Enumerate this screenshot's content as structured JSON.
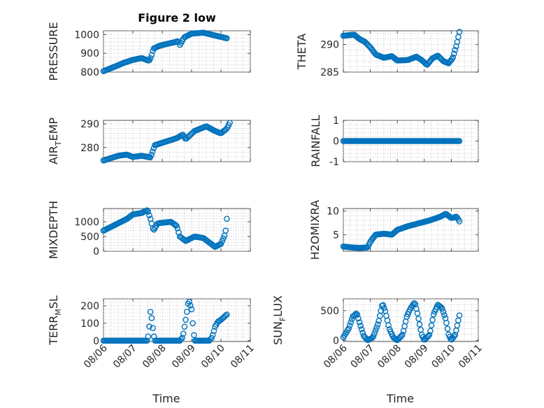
{
  "figure": {
    "title": "Figure 2 low"
  },
  "colors": {
    "marker": "#0072bd"
  },
  "chart_data": [
    {
      "type": "scatter",
      "name": "pressure",
      "ylabel": "PRESSURE",
      "xlabel": "",
      "xlim": [
        0,
        5
      ],
      "ylim": [
        800,
        1020
      ],
      "yticks": [
        800,
        900,
        1000
      ],
      "ytick_labels": [
        "800",
        "900",
        "1000"
      ],
      "xticks": [
        0,
        1,
        2,
        3,
        4,
        5
      ],
      "xtick_labels": [],
      "grid": true,
      "keypoints": [
        [
          0,
          805
        ],
        [
          0.4,
          830
        ],
        [
          0.7,
          850
        ],
        [
          1.0,
          865
        ],
        [
          1.3,
          875
        ],
        [
          1.55,
          860
        ],
        [
          1.62,
          880
        ],
        [
          1.7,
          925
        ],
        [
          1.9,
          940
        ],
        [
          2.3,
          955
        ],
        [
          2.55,
          965
        ],
        [
          2.6,
          945
        ],
        [
          2.75,
          985
        ],
        [
          3.0,
          1005
        ],
        [
          3.4,
          1010
        ],
        [
          3.8,
          995
        ],
        [
          4.2,
          980
        ]
      ]
    },
    {
      "type": "scatter",
      "name": "theta",
      "ylabel": "THETA",
      "xlabel": "",
      "xlim": [
        0,
        5
      ],
      "ylim": [
        285,
        292.5
      ],
      "yticks": [
        285,
        290
      ],
      "ytick_labels": [
        "285",
        "290"
      ],
      "xticks": [
        0,
        1,
        2,
        3,
        4,
        5
      ],
      "xtick_labels": [],
      "grid": true,
      "keypoints": [
        [
          0,
          291.6
        ],
        [
          0.4,
          291.8
        ],
        [
          0.6,
          291.0
        ],
        [
          0.8,
          290.5
        ],
        [
          1.0,
          289.5
        ],
        [
          1.2,
          288.2
        ],
        [
          1.5,
          287.6
        ],
        [
          1.8,
          287.9
        ],
        [
          2.0,
          287.1
        ],
        [
          2.4,
          287.2
        ],
        [
          2.7,
          287.8
        ],
        [
          2.9,
          287.2
        ],
        [
          3.1,
          286.3
        ],
        [
          3.3,
          287.5
        ],
        [
          3.5,
          288.0
        ],
        [
          3.7,
          287.0
        ],
        [
          3.9,
          286.6
        ],
        [
          4.05,
          287.5
        ],
        [
          4.2,
          290.0
        ],
        [
          4.3,
          292.3
        ]
      ]
    },
    {
      "type": "scatter",
      "name": "air_temp",
      "ylabel": "AIR_TEMP",
      "xlabel": "",
      "xlim": [
        0,
        5
      ],
      "ylim": [
        274,
        291.5
      ],
      "yticks": [
        280,
        290
      ],
      "ytick_labels": [
        "280",
        "290"
      ],
      "xticks": [
        0,
        1,
        2,
        3,
        4,
        5
      ],
      "xtick_labels": [],
      "grid": true,
      "keypoints": [
        [
          0,
          274.5
        ],
        [
          0.5,
          276.5
        ],
        [
          0.8,
          277.0
        ],
        [
          1.0,
          276.0
        ],
        [
          1.3,
          276.5
        ],
        [
          1.6,
          275.8
        ],
        [
          1.75,
          281.0
        ],
        [
          2.0,
          282.0
        ],
        [
          2.5,
          284.0
        ],
        [
          2.7,
          285.5
        ],
        [
          2.8,
          283.5
        ],
        [
          3.1,
          287.0
        ],
        [
          3.5,
          289.0
        ],
        [
          3.8,
          287.0
        ],
        [
          4.0,
          286.0
        ],
        [
          4.2,
          288.0
        ],
        [
          4.3,
          290.5
        ]
      ]
    },
    {
      "type": "scatter",
      "name": "rainfall",
      "ylabel": "RAINFALL",
      "xlabel": "",
      "xlim": [
        0,
        5
      ],
      "ylim": [
        -1,
        1
      ],
      "yticks": [
        -1,
        0,
        1
      ],
      "ytick_labels": [
        "-1",
        "0",
        "1"
      ],
      "xticks": [
        0,
        1,
        2,
        3,
        4,
        5
      ],
      "xtick_labels": [],
      "grid": true,
      "keypoints": [
        [
          0,
          0
        ],
        [
          4.3,
          0
        ]
      ]
    },
    {
      "type": "scatter",
      "name": "mixdepth",
      "ylabel": "MIXDEPTH",
      "xlabel": "",
      "xlim": [
        0,
        5
      ],
      "ylim": [
        0,
        1450
      ],
      "yticks": [
        0,
        500,
        1000
      ],
      "ytick_labels": [
        "0",
        "500",
        "1000"
      ],
      "xticks": [
        0,
        1,
        2,
        3,
        4,
        5
      ],
      "xtick_labels": [],
      "grid": true,
      "keypoints": [
        [
          0,
          700
        ],
        [
          0.5,
          950
        ],
        [
          0.8,
          1100
        ],
        [
          1.0,
          1250
        ],
        [
          1.3,
          1300
        ],
        [
          1.5,
          1400
        ],
        [
          1.6,
          1100
        ],
        [
          1.7,
          700
        ],
        [
          1.85,
          950
        ],
        [
          2.3,
          1000
        ],
        [
          2.5,
          850
        ],
        [
          2.6,
          500
        ],
        [
          2.8,
          350
        ],
        [
          3.1,
          500
        ],
        [
          3.4,
          450
        ],
        [
          3.6,
          300
        ],
        [
          3.8,
          150
        ],
        [
          4.0,
          250
        ],
        [
          4.15,
          600
        ],
        [
          4.2,
          1100
        ]
      ]
    },
    {
      "type": "scatter",
      "name": "h2omixra",
      "ylabel": "H2OMIXRA",
      "xlabel": "",
      "xlim": [
        0,
        5
      ],
      "ylim": [
        1.5,
        10.5
      ],
      "yticks": [
        5,
        10
      ],
      "ytick_labels": [
        "5",
        "10"
      ],
      "xticks": [
        0,
        1,
        2,
        3,
        4,
        5
      ],
      "xtick_labels": [],
      "grid": true,
      "keypoints": [
        [
          0,
          2.5
        ],
        [
          0.3,
          2.3
        ],
        [
          0.6,
          2.2
        ],
        [
          0.9,
          2.3
        ],
        [
          1.0,
          3.5
        ],
        [
          1.2,
          5.0
        ],
        [
          1.5,
          5.2
        ],
        [
          1.8,
          5.0
        ],
        [
          2.0,
          6.0
        ],
        [
          2.4,
          6.8
        ],
        [
          2.8,
          7.4
        ],
        [
          3.2,
          8.0
        ],
        [
          3.6,
          8.8
        ],
        [
          3.8,
          9.4
        ],
        [
          4.0,
          8.5
        ],
        [
          4.2,
          8.8
        ],
        [
          4.3,
          7.8
        ]
      ]
    },
    {
      "type": "scatter",
      "name": "terr_msl",
      "ylabel": "TERR_MSL",
      "xlabel": "Time",
      "xlim": [
        0,
        5
      ],
      "ylim": [
        -5,
        240
      ],
      "yticks": [
        0,
        100,
        200
      ],
      "ytick_labels": [
        "0",
        "100",
        "200"
      ],
      "xticks": [
        0,
        1,
        2,
        3,
        4,
        5
      ],
      "xtick_labels": [
        "08/06",
        "08/07",
        "08/08",
        "08/09",
        "08/10",
        "08/11"
      ],
      "grid": true,
      "keypoints": [
        [
          0,
          0
        ],
        [
          1.5,
          0
        ],
        [
          1.55,
          60
        ],
        [
          1.6,
          165
        ],
        [
          1.65,
          120
        ],
        [
          1.7,
          40
        ],
        [
          1.75,
          0
        ],
        [
          2.6,
          0
        ],
        [
          2.7,
          20
        ],
        [
          2.8,
          120
        ],
        [
          2.9,
          235
        ],
        [
          3.0,
          180
        ],
        [
          3.05,
          80
        ],
        [
          3.1,
          0
        ],
        [
          3.6,
          0
        ],
        [
          3.7,
          20
        ],
        [
          3.8,
          80
        ],
        [
          3.9,
          110
        ],
        [
          4.0,
          120
        ],
        [
          4.2,
          150
        ]
      ]
    },
    {
      "type": "scatter",
      "name": "sun_flux",
      "ylabel": "SUN_FLUX",
      "xlabel": "Time",
      "xlim": [
        0,
        5
      ],
      "ylim": [
        -20,
        700
      ],
      "yticks": [
        0,
        500
      ],
      "ytick_labels": [
        "0",
        "500"
      ],
      "xticks": [
        0,
        1,
        2,
        3,
        4,
        5
      ],
      "xtick_labels": [
        "08/06",
        "08/07",
        "08/08",
        "08/09",
        "08/10",
        "08/11"
      ],
      "grid": true,
      "keypoints": [
        [
          0,
          50
        ],
        [
          0.2,
          200
        ],
        [
          0.35,
          400
        ],
        [
          0.5,
          460
        ],
        [
          0.6,
          300
        ],
        [
          0.75,
          80
        ],
        [
          0.9,
          0
        ],
        [
          1.1,
          50
        ],
        [
          1.3,
          300
        ],
        [
          1.45,
          620
        ],
        [
          1.55,
          500
        ],
        [
          1.7,
          200
        ],
        [
          1.85,
          50
        ],
        [
          2.0,
          0
        ],
        [
          2.2,
          100
        ],
        [
          2.35,
          400
        ],
        [
          2.5,
          550
        ],
        [
          2.65,
          640
        ],
        [
          2.75,
          450
        ],
        [
          2.9,
          100
        ],
        [
          3.0,
          0
        ],
        [
          3.2,
          100
        ],
        [
          3.35,
          450
        ],
        [
          3.5,
          600
        ],
        [
          3.65,
          550
        ],
        [
          3.8,
          350
        ],
        [
          3.9,
          100
        ],
        [
          4.0,
          0
        ],
        [
          4.15,
          100
        ],
        [
          4.3,
          420
        ]
      ]
    }
  ]
}
